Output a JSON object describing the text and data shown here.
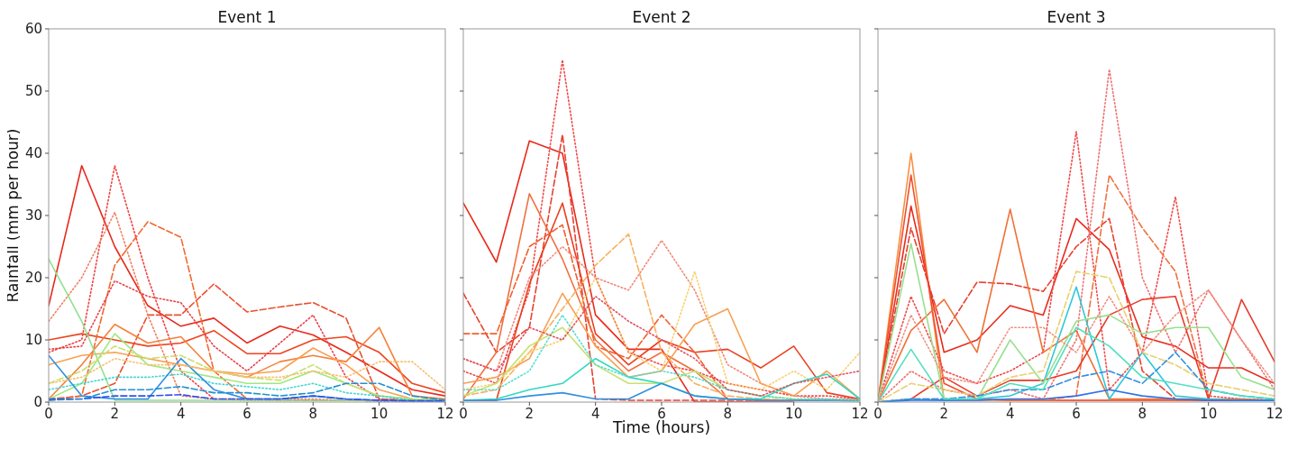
{
  "chart_data": [
    {
      "type": "line",
      "title": "Event 1",
      "ylabel": "Rainfall (mm per hour)",
      "x": [
        0,
        1,
        2,
        3,
        4,
        5,
        6,
        7,
        8,
        9,
        10,
        11,
        12
      ],
      "xlim": [
        0,
        12
      ],
      "xticks": [
        0,
        2,
        4,
        6,
        8,
        10,
        12
      ],
      "ylim": [
        0,
        60
      ],
      "yticks": [
        0,
        10,
        20,
        30,
        40,
        50,
        60
      ],
      "series": [
        {
          "color": "#e8291c",
          "line_style": "solid",
          "values": [
            15.5,
            38,
            25,
            15.5,
            12.2,
            13.5,
            9.5,
            12.2,
            10.8,
            8,
            5,
            2,
            1
          ]
        },
        {
          "color": "#ee4420",
          "line_style": "solid",
          "values": [
            10,
            11,
            10,
            9,
            9.5,
            11.5,
            7.8,
            7.8,
            10,
            10.5,
            8,
            3,
            1.5
          ]
        },
        {
          "color": "#e85030",
          "line_style": "dashed",
          "values": [
            0.3,
            1,
            3,
            14,
            14,
            19,
            14.5,
            15.3,
            16,
            13.5,
            0.5,
            0.3,
            0.3
          ]
        },
        {
          "color": "#f06a30",
          "line_style": "dashed",
          "values": [
            0.5,
            1,
            22,
            29,
            26.5,
            5,
            0.5,
            0.3,
            0.3,
            0.3,
            0.2,
            0.2,
            0.2
          ]
        },
        {
          "color": "#f04040",
          "line_style": "dotted",
          "values": [
            8,
            10,
            38,
            20,
            5,
            0.5,
            0.3,
            0.3,
            0.3,
            0.3,
            0.2,
            0.2,
            0.2
          ]
        },
        {
          "color": "#f08060",
          "line_style": "dotted",
          "values": [
            13,
            20,
            30.5,
            14,
            1,
            0.5,
            0.5,
            0.5,
            0.5,
            0.3,
            0.2,
            0.2,
            0.2
          ]
        },
        {
          "color": "#e8404a",
          "line_style": "dotted",
          "values": [
            8.5,
            9,
            19.5,
            17,
            16,
            9,
            5,
            9.5,
            14,
            4,
            0.5,
            0.3,
            0.2
          ]
        },
        {
          "color": "#f5803a",
          "line_style": "solid",
          "values": [
            0.5,
            6,
            12.5,
            9.5,
            10.5,
            5,
            4,
            6.5,
            7.5,
            6.5,
            12,
            1,
            0.5
          ]
        },
        {
          "color": "#f8a050",
          "line_style": "solid",
          "values": [
            6,
            7.5,
            8,
            7,
            6,
            5,
            4.5,
            5,
            8.7,
            6,
            2,
            0.5,
            0.3
          ]
        },
        {
          "color": "#90e090",
          "line_style": "solid",
          "values": [
            23,
            13,
            0.3,
            0.3,
            0.3,
            0.3,
            0.3,
            0.3,
            0.3,
            0.3,
            0.3,
            0.3,
            0.3
          ]
        },
        {
          "color": "#a0e880",
          "line_style": "solid",
          "values": [
            0.5,
            3,
            11,
            6,
            5,
            4,
            3,
            3,
            5,
            3,
            1,
            0.5,
            0.3
          ]
        },
        {
          "color": "#c8e070",
          "line_style": "dashed",
          "values": [
            3,
            5,
            9,
            7,
            7.5,
            5,
            4,
            3.5,
            6,
            3,
            1,
            0.5,
            0.3
          ]
        },
        {
          "color": "#40d8d0",
          "line_style": "dotted",
          "values": [
            2,
            3,
            4,
            4,
            4.5,
            3,
            2.5,
            2,
            3,
            1.5,
            1,
            0.3,
            0.2
          ]
        },
        {
          "color": "#3090e0",
          "line_style": "solid",
          "values": [
            7.5,
            1,
            0.5,
            0.5,
            7,
            2,
            0.5,
            0.5,
            1,
            0.5,
            0.3,
            0.2,
            0.2
          ]
        },
        {
          "color": "#3050f0",
          "line_style": "dashed",
          "values": [
            0.5,
            0.5,
            1,
            1,
            1.2,
            0.5,
            0.5,
            0.5,
            1,
            0.5,
            0.3,
            0.2,
            0.2
          ]
        },
        {
          "color": "#f8c070",
          "line_style": "dotted",
          "values": [
            3,
            4,
            7,
            6,
            6,
            5,
            4,
            4,
            5,
            4,
            6.5,
            6.5,
            2
          ]
        },
        {
          "color": "#2090d0",
          "line_style": "dashed",
          "values": [
            0.3,
            0.5,
            2,
            2,
            2.5,
            1.5,
            1.5,
            1,
            1.5,
            3,
            3,
            1,
            0.3
          ]
        }
      ]
    },
    {
      "type": "line",
      "title": "Event 2",
      "xlabel": "Time (hours)",
      "x": [
        0,
        1,
        2,
        3,
        4,
        5,
        6,
        7,
        8,
        9,
        10,
        11,
        12
      ],
      "xlim": [
        0,
        12
      ],
      "xticks": [
        0,
        2,
        4,
        6,
        8,
        10,
        12
      ],
      "ylim": [
        0,
        60
      ],
      "yticks": [
        0,
        10,
        20,
        30,
        40,
        50,
        60
      ],
      "tick_labels": "x",
      "series": [
        {
          "color": "#e82a1c",
          "line_style": "solid",
          "values": [
            32,
            22.5,
            42,
            40,
            14,
            8.5,
            8.5,
            0,
            0,
            0,
            0,
            null,
            null
          ]
        },
        {
          "color": "#f04848",
          "line_style": "dotted",
          "values": [
            5,
            3,
            18,
            55,
            20,
            8,
            6,
            5,
            3,
            2,
            1,
            1,
            0.5
          ]
        },
        {
          "color": "#e84030",
          "line_style": "dashed",
          "values": [
            17.5,
            8,
            12,
            43,
            0.5,
            0.3,
            0.3,
            0.3,
            0.3,
            0.3,
            0.3,
            0.3,
            0.3
          ]
        },
        {
          "color": "#f07040",
          "line_style": "solid",
          "values": [
            0.5,
            8,
            33.5,
            23,
            10,
            5,
            8,
            5,
            0.5,
            0.3,
            0.3,
            0.3,
            0.2
          ]
        },
        {
          "color": "#e84020",
          "line_style": "solid",
          "values": [
            0.3,
            0.3,
            19,
            32,
            11,
            6,
            10,
            8,
            8.5,
            5.5,
            9,
            1.5,
            0.5
          ]
        },
        {
          "color": "#f06030",
          "line_style": "dashed",
          "values": [
            11,
            11,
            25,
            28.5,
            9,
            7,
            14,
            8,
            0.5,
            0.3,
            0.3,
            0.3,
            0.3
          ]
        },
        {
          "color": "#f8b060",
          "line_style": "dashed",
          "values": [
            1,
            2,
            8,
            15,
            22,
            27,
            8,
            3,
            1,
            0.5,
            0.3,
            0.3,
            0.3
          ]
        },
        {
          "color": "#f08878",
          "line_style": "dotted",
          "values": [
            7,
            5,
            20,
            25,
            20,
            18,
            26,
            18,
            6,
            3,
            1,
            0.5,
            0.5
          ]
        },
        {
          "color": "#f8a050",
          "line_style": "solid",
          "values": [
            3,
            4,
            7,
            17.5,
            9,
            4,
            5,
            12.5,
            15,
            3,
            1,
            5,
            0.5
          ]
        },
        {
          "color": "#f8d070",
          "line_style": "dotted",
          "values": [
            2,
            3,
            8,
            10,
            20,
            8,
            5,
            21,
            3,
            2,
            5,
            2,
            8
          ]
        },
        {
          "color": "#c8e070",
          "line_style": "solid",
          "values": [
            1,
            3,
            9,
            12,
            6,
            3,
            3,
            5,
            2,
            1,
            0.5,
            0.3,
            0.2
          ]
        },
        {
          "color": "#30d8c0",
          "line_style": "solid",
          "values": [
            0.3,
            0.5,
            2,
            3,
            7,
            4,
            3,
            1,
            0.5,
            0.5,
            3,
            4.5,
            0.5
          ]
        },
        {
          "color": "#3090e0",
          "line_style": "solid",
          "values": [
            0.3,
            0.3,
            1,
            1.5,
            0.5,
            0.5,
            3,
            1,
            0.5,
            0.3,
            0.3,
            0.3,
            0.3
          ]
        },
        {
          "color": "#50e0d0",
          "line_style": "dotted",
          "values": [
            2,
            2,
            5,
            14,
            6,
            4,
            5,
            4,
            2,
            1,
            0.5,
            0.5,
            0.3
          ]
        },
        {
          "color": "#e05060",
          "line_style": "dotted",
          "values": [
            7,
            5,
            12,
            10,
            17,
            13,
            10,
            7,
            2,
            1,
            3,
            4,
            5
          ]
        }
      ]
    },
    {
      "type": "line",
      "title": "Event 3",
      "x": [
        0,
        1,
        2,
        3,
        4,
        5,
        6,
        7,
        8,
        9,
        10,
        11,
        12
      ],
      "xlim": [
        0,
        12
      ],
      "xticks": [
        0,
        2,
        4,
        6,
        8,
        10,
        12
      ],
      "ylim": [
        0,
        60
      ],
      "yticks": [
        0,
        10,
        20,
        30,
        40,
        50,
        60
      ],
      "tick_labels": "x",
      "series": [
        {
          "color": "#f89040",
          "line_style": "solid",
          "values": [
            0,
            40,
            0.3,
            0.3,
            0.3,
            0.3,
            0.3,
            0.3,
            0.3,
            0.3,
            0.3,
            0.3,
            0.3
          ]
        },
        {
          "color": "#e82a1c",
          "line_style": "solid",
          "values": [
            0,
            31.5,
            8,
            10,
            15.5,
            14,
            29.5,
            24.5,
            10.5,
            9,
            5.5,
            5.5,
            3
          ]
        },
        {
          "color": "#f05030",
          "line_style": "solid",
          "values": [
            0,
            36.5,
            3,
            0.5,
            0.3,
            0.3,
            0.3,
            0.3,
            0.3,
            0.3,
            0.3,
            0.3,
            0.3
          ]
        },
        {
          "color": "#e84030",
          "line_style": "dashed",
          "values": [
            0,
            28,
            11,
            19.3,
            19,
            17.8,
            25,
            29.5,
            5,
            0.5,
            0.3,
            0.3,
            0.3
          ]
        },
        {
          "color": "#f04848",
          "line_style": "dotted",
          "values": [
            0,
            17,
            5,
            3,
            5,
            8,
            43.5,
            2,
            8,
            33,
            1,
            0.5,
            0.3
          ]
        },
        {
          "color": "#f07070",
          "line_style": "dotted",
          "values": [
            0,
            5,
            2,
            1,
            2,
            0.5,
            10,
            53.5,
            20,
            8,
            18,
            10,
            2
          ]
        },
        {
          "color": "#f07040",
          "line_style": "dashed",
          "values": [
            0,
            0.5,
            0.5,
            0.5,
            0.3,
            0.3,
            1,
            36.5,
            28,
            21,
            0.5,
            0.3,
            0.3
          ]
        },
        {
          "color": "#f07038",
          "line_style": "solid",
          "values": [
            0,
            11.5,
            16.5,
            8,
            31,
            8,
            11.5,
            0.5,
            0.5,
            0.5,
            0.5,
            0.5,
            0.3
          ]
        },
        {
          "color": "#e83a28",
          "line_style": "solid",
          "values": [
            0,
            0.5,
            4,
            1,
            3.5,
            3.5,
            5,
            14,
            16.5,
            17,
            0.5,
            16.5,
            6.5
          ]
        },
        {
          "color": "#30c8d8",
          "line_style": "solid",
          "values": [
            0,
            0.5,
            0.3,
            0.5,
            1,
            3,
            18.5,
            0.5,
            8,
            1,
            0.5,
            0.3,
            0.3
          ]
        },
        {
          "color": "#98e090",
          "line_style": "solid",
          "values": [
            0,
            25.5,
            0.5,
            0.5,
            10,
            3,
            13,
            14,
            11,
            12,
            12,
            4,
            2
          ]
        },
        {
          "color": "#e8d070",
          "line_style": "dashed",
          "values": [
            0,
            3,
            2,
            1,
            4,
            5,
            21,
            20,
            8,
            6,
            3,
            2,
            1
          ]
        },
        {
          "color": "#3070e8",
          "line_style": "solid",
          "values": [
            0,
            0.3,
            0.3,
            0.3,
            0.5,
            0.5,
            1,
            2,
            1,
            0.5,
            0.3,
            0.3,
            0.3
          ]
        },
        {
          "color": "#3090e0",
          "line_style": "dashed",
          "values": [
            0,
            0.5,
            0.5,
            1,
            2,
            2,
            4,
            5,
            3,
            8,
            2,
            1,
            0.5
          ]
        },
        {
          "color": "#50e0c0",
          "line_style": "solid",
          "values": [
            0,
            8.5,
            0.5,
            0.5,
            3,
            2,
            12,
            9,
            4,
            3,
            2,
            1,
            0.5
          ]
        },
        {
          "color": "#f09080",
          "line_style": "dotted",
          "values": [
            0,
            14,
            4,
            3,
            12,
            12,
            8,
            17,
            8,
            14,
            18,
            10,
            3
          ]
        }
      ]
    }
  ]
}
